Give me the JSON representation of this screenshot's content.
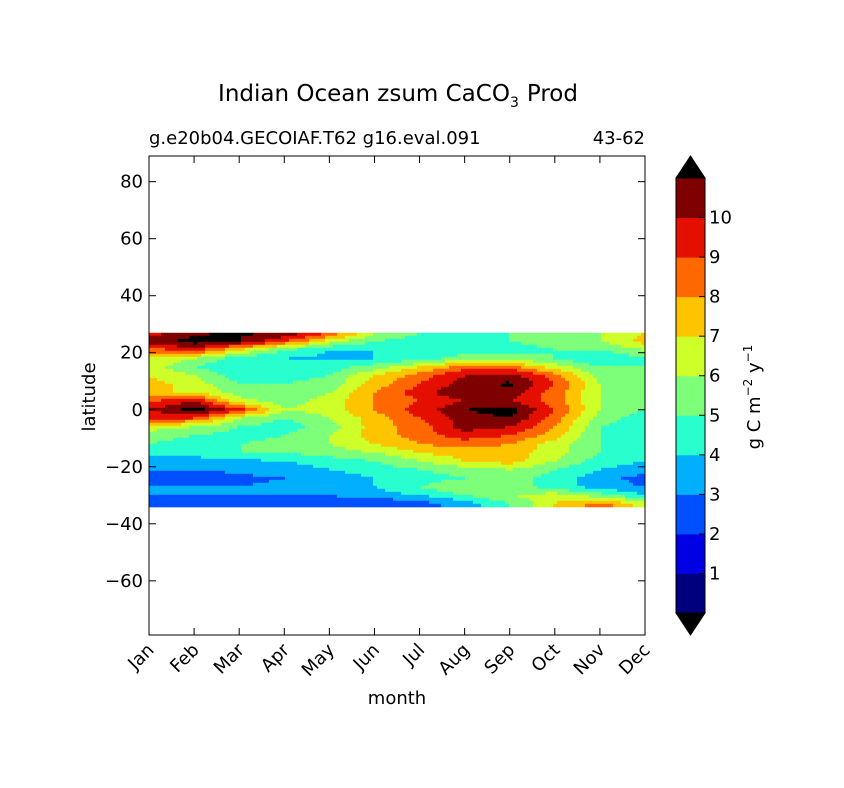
{
  "chart_data": {
    "type": "heatmap",
    "title": "Indian Ocean zsum CaCO",
    "title_subscript": "3",
    "title_suffix": "Prod",
    "subtitle_left": "g.e20b04.GECOIAF.T62 g16.eval.091",
    "subtitle_right": "43-62",
    "xlabel": "month",
    "ylabel": "latitude",
    "x_ticks": [
      "Jan",
      "Feb",
      "Mar",
      "Apr",
      "May",
      "Jun",
      "Jul",
      "Aug",
      "Sep",
      "Oct",
      "Nov",
      "Dec"
    ],
    "y_ticks": [
      80,
      60,
      40,
      20,
      0,
      -20,
      -40,
      -60
    ],
    "y_tick_labels": [
      "80",
      "60",
      "40",
      "20",
      "0",
      "−20",
      "−40",
      "−60"
    ],
    "ylim": [
      -79,
      89
    ],
    "data_lat_range": [
      -34,
      27
    ],
    "colorbar": {
      "label": "g C m",
      "label_sup1": "−2",
      "label_mid": " y",
      "label_sup2": "−1",
      "levels": [
        0,
        1,
        2,
        3,
        4,
        5,
        6,
        7,
        8,
        9,
        10,
        11
      ],
      "tick_labels": [
        "1",
        "2",
        "3",
        "4",
        "5",
        "6",
        "7",
        "8",
        "9",
        "10"
      ],
      "colors": [
        "#00007f",
        "#0000e5",
        "#0050ff",
        "#00b0ff",
        "#29ffce",
        "#7dff7a",
        "#ceff29",
        "#ffc400",
        "#ff6800",
        "#e50f00",
        "#7f0000"
      ],
      "extend_low_color": "#000000",
      "extend_high_color": "#000000"
    },
    "latitudes": [
      27,
      24,
      21,
      18,
      15,
      12,
      9,
      6,
      3,
      0,
      -3,
      -6,
      -9,
      -12,
      -15,
      -18,
      -21,
      -24,
      -27,
      -30,
      -33
    ],
    "months": [
      "Jan",
      "Feb",
      "Mar",
      "Apr",
      "May",
      "Jun",
      "Jul",
      "Aug",
      "Sep",
      "Oct",
      "Nov",
      "Dec"
    ],
    "values": [
      [
        9.5,
        10.8,
        11.2,
        11.0,
        9.0,
        6.0,
        5.0,
        5.0,
        5.0,
        5.5,
        6.0,
        7.0
      ],
      [
        10.5,
        11.5,
        11.0,
        9.0,
        6.5,
        5.0,
        4.5,
        4.5,
        5.0,
        5.5,
        6.0,
        7.5
      ],
      [
        8.5,
        9.5,
        7.0,
        5.0,
        4.0,
        4.0,
        4.0,
        4.5,
        4.5,
        5.0,
        5.0,
        6.0
      ],
      [
        7.0,
        6.0,
        4.5,
        4.0,
        3.8,
        4.0,
        4.5,
        5.5,
        5.5,
        5.0,
        4.0,
        5.0
      ],
      [
        6.5,
        5.0,
        4.0,
        4.0,
        4.5,
        5.5,
        7.0,
        8.5,
        8.5,
        6.5,
        5.0,
        5.0
      ],
      [
        7.0,
        6.0,
        4.5,
        4.5,
        5.0,
        7.0,
        8.5,
        10.0,
        10.5,
        8.5,
        5.5,
        5.5
      ],
      [
        7.5,
        6.5,
        5.0,
        5.0,
        5.5,
        7.5,
        9.0,
        10.5,
        11.2,
        9.0,
        6.0,
        5.5
      ],
      [
        7.0,
        7.0,
        5.5,
        5.0,
        6.0,
        8.0,
        9.5,
        11.0,
        10.5,
        8.5,
        6.0,
        5.5
      ],
      [
        9.0,
        10.0,
        6.5,
        5.5,
        6.5,
        8.0,
        9.0,
        10.0,
        10.0,
        8.5,
        6.0,
        5.0
      ],
      [
        10.0,
        11.5,
        9.5,
        6.0,
        6.5,
        8.0,
        9.5,
        11.0,
        11.5,
        9.0,
        6.0,
        5.0
      ],
      [
        9.0,
        9.0,
        6.0,
        5.0,
        6.0,
        7.5,
        9.0,
        10.5,
        11.0,
        8.5,
        5.5,
        4.5
      ],
      [
        6.5,
        6.0,
        5.0,
        4.5,
        5.5,
        7.5,
        8.5,
        10.5,
        10.0,
        8.0,
        5.0,
        4.5
      ],
      [
        5.5,
        5.0,
        4.5,
        5.0,
        6.0,
        7.5,
        8.5,
        9.5,
        9.0,
        7.5,
        5.0,
        4.5
      ],
      [
        5.0,
        4.5,
        5.0,
        5.5,
        6.0,
        7.0,
        8.0,
        8.5,
        8.0,
        6.5,
        5.0,
        4.5
      ],
      [
        4.5,
        4.5,
        5.0,
        5.0,
        5.5,
        6.0,
        7.0,
        7.5,
        7.5,
        6.5,
        5.0,
        4.5
      ],
      [
        3.5,
        3.5,
        3.8,
        4.0,
        4.5,
        5.0,
        6.0,
        7.0,
        7.5,
        6.0,
        4.5,
        4.0
      ],
      [
        3.0,
        3.0,
        3.2,
        3.5,
        4.0,
        4.5,
        5.0,
        5.5,
        6.0,
        5.0,
        4.0,
        3.5
      ],
      [
        2.5,
        2.5,
        2.8,
        3.0,
        3.5,
        4.0,
        4.5,
        5.0,
        5.5,
        4.5,
        3.5,
        2.5
      ],
      [
        3.0,
        3.0,
        3.0,
        3.2,
        3.5,
        4.0,
        5.0,
        6.0,
        5.5,
        4.5,
        3.5,
        3.0
      ],
      [
        3.0,
        3.0,
        3.0,
        3.0,
        3.0,
        3.5,
        4.0,
        5.0,
        6.0,
        6.5,
        5.5,
        4.0
      ],
      [
        3.0,
        2.8,
        2.8,
        2.8,
        2.5,
        2.0,
        2.5,
        3.5,
        5.0,
        7.0,
        8.5,
        6.5
      ]
    ]
  }
}
